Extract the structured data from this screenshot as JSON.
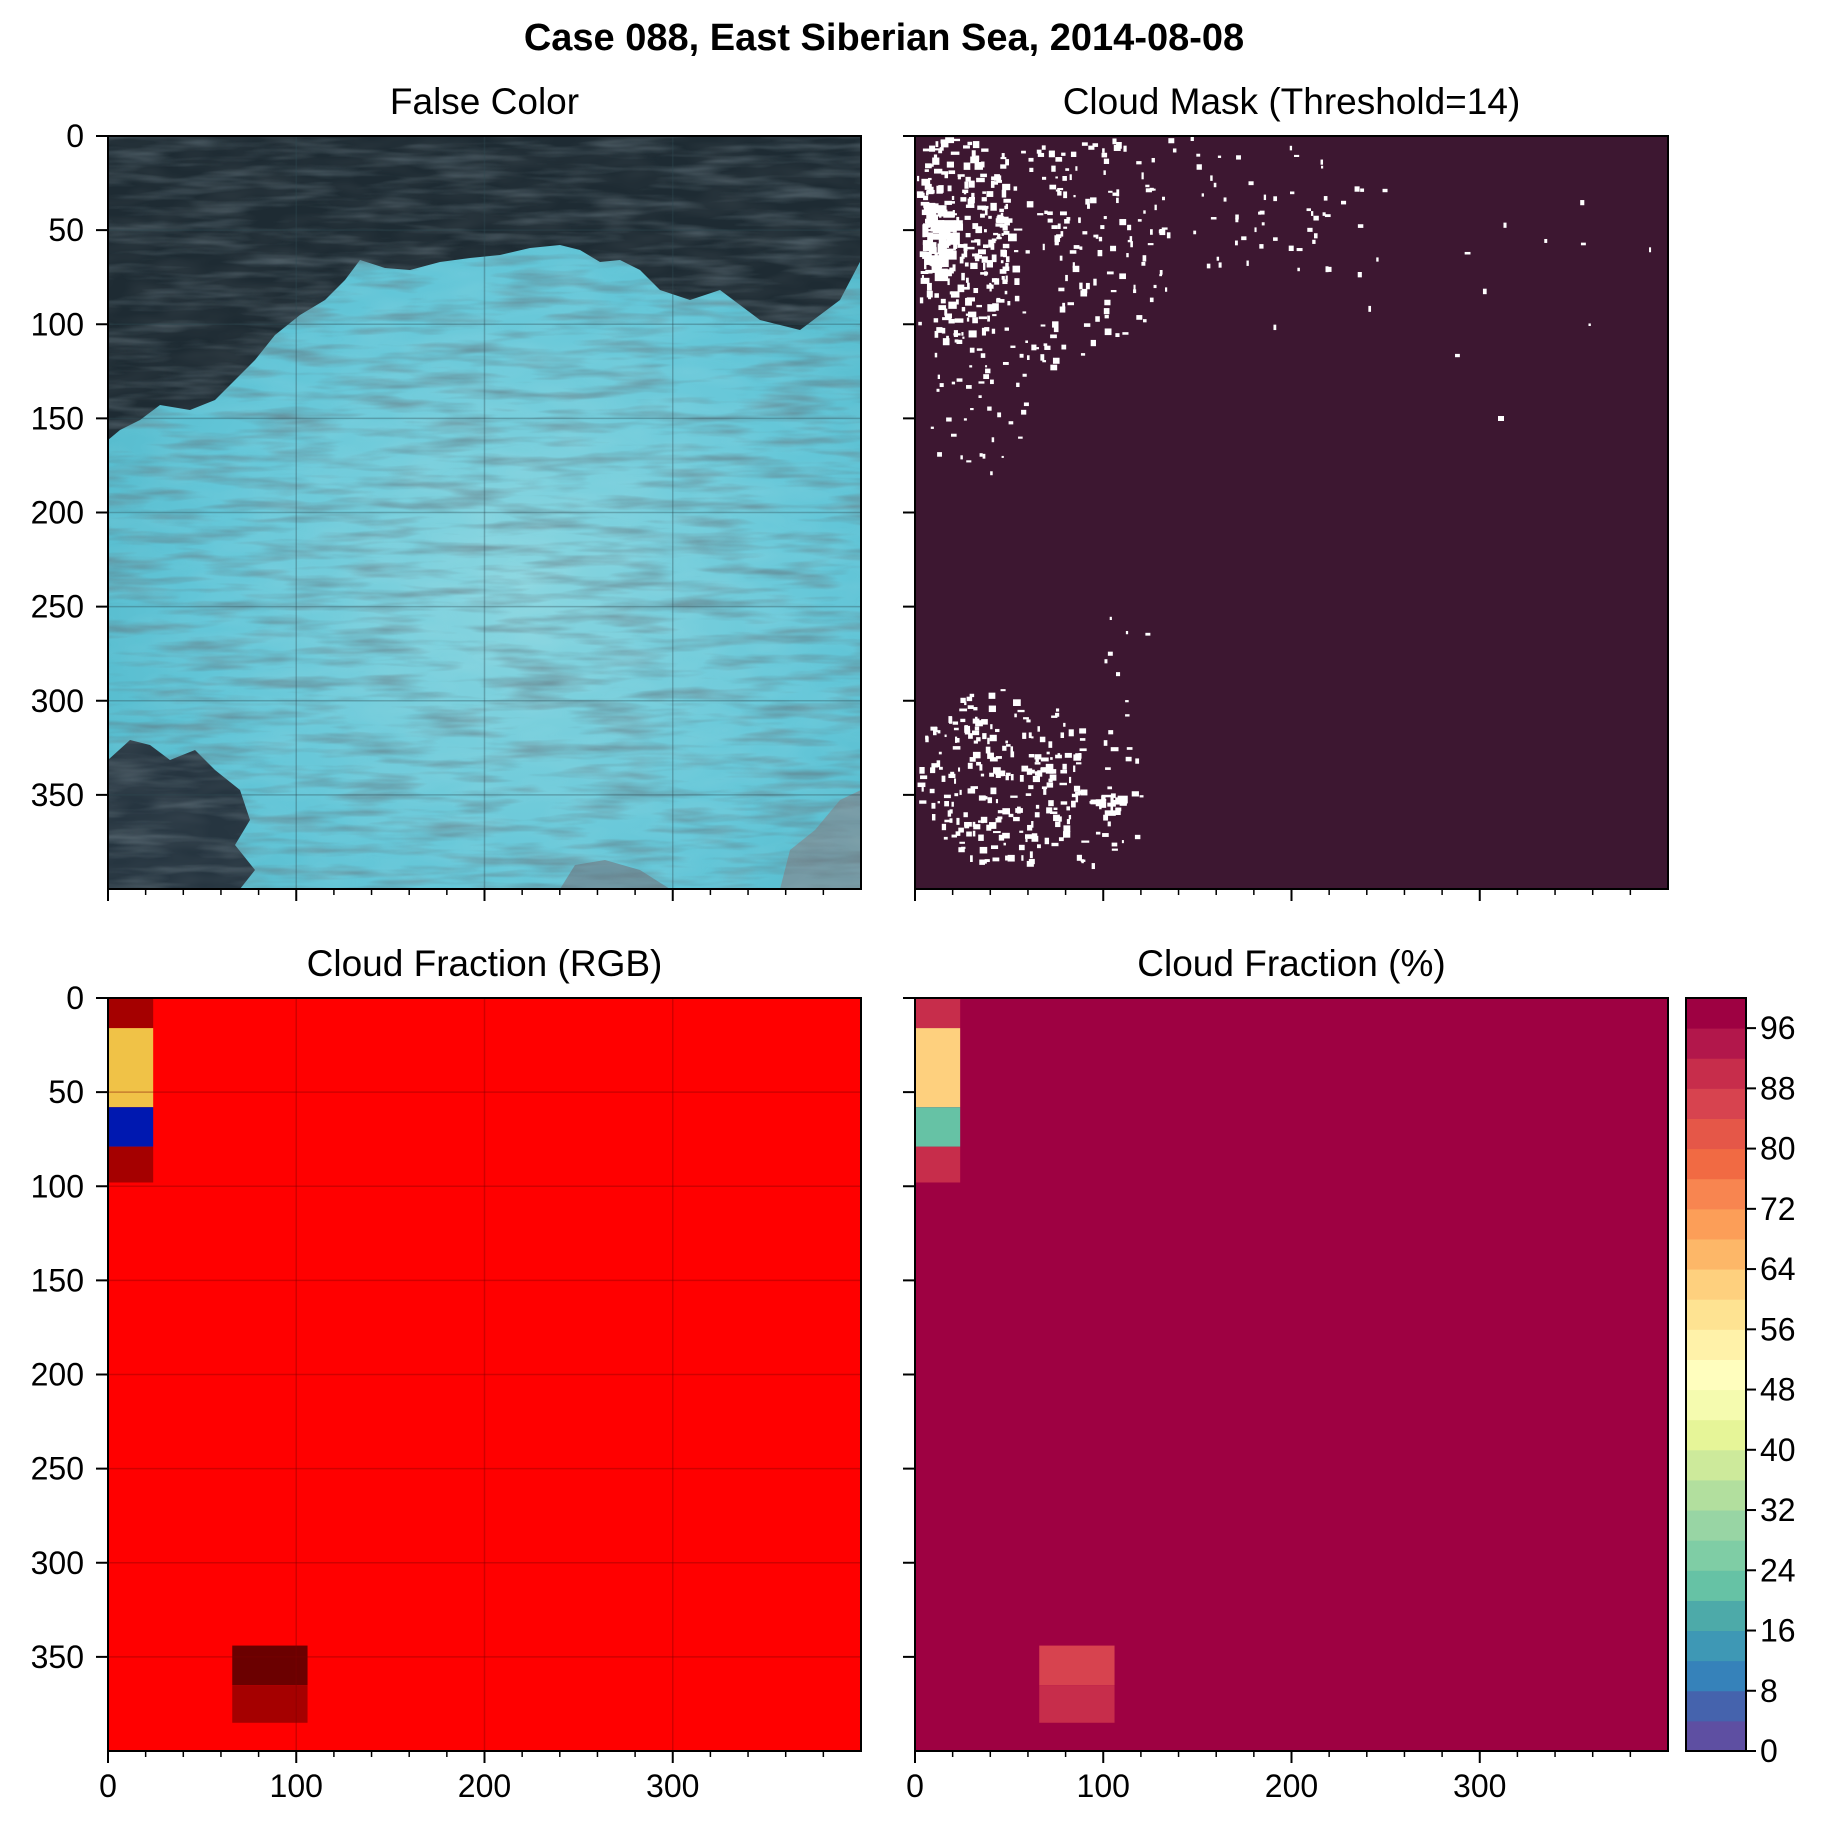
{
  "figure": {
    "title": "Case 088, East Siberian Sea, 2014-08-08"
  },
  "colors": {
    "ocean_dark": "#1e2b33",
    "ice_cyan": "#5fc4d6",
    "ice_light": "#8ad6e0",
    "mask_background": "#3d1731",
    "mask_cloud": "#ffffff",
    "rgb_red": "#ff0000",
    "rgb_darkred": "#a50000",
    "rgb_darkest": "#6b0000",
    "rgb_yellow": "#f0c247",
    "rgb_blue": "#0018b0",
    "frac_main": "#9e0142"
  },
  "chart_data": [
    {
      "type": "heatmap",
      "panel": "false-color",
      "title": "False Color",
      "xlim": [
        0,
        400
      ],
      "ylim": [
        400,
        0
      ],
      "xticks": [
        0,
        100,
        200,
        300
      ],
      "yticks": [
        0,
        50,
        100,
        150,
        200,
        250,
        300,
        350
      ],
      "show_xticklabels": false,
      "show_yticklabels": true,
      "grid": true,
      "regions": [
        {
          "label": "open water (dark)",
          "area": "upper-left and top band, patches lower-left"
        },
        {
          "label": "sea ice (cyan)",
          "area": "center, lower and right"
        }
      ]
    },
    {
      "type": "heatmap",
      "panel": "cloud-mask",
      "title": "Cloud Mask (Threshold=14)",
      "xlim": [
        0,
        400
      ],
      "ylim": [
        400,
        0
      ],
      "xticks": [
        0,
        100,
        200,
        300
      ],
      "yticks": [
        0,
        50,
        100,
        150,
        200,
        250,
        300,
        350
      ],
      "show_xticklabels": false,
      "show_yticklabels": false,
      "grid": false
    },
    {
      "type": "heatmap",
      "panel": "cloud-fraction-rgb",
      "title": "Cloud Fraction (RGB)",
      "xlim": [
        0,
        400
      ],
      "ylim": [
        400,
        0
      ],
      "xticks": [
        0,
        100,
        200,
        300
      ],
      "yticks": [
        0,
        50,
        100,
        150,
        200,
        250,
        300,
        350
      ],
      "show_xticklabels": true,
      "show_yticklabels": true,
      "grid": true,
      "background_color": "#ff0000",
      "cells": [
        {
          "x": [
            0,
            24
          ],
          "y": [
            0,
            16
          ],
          "color": "#a50000"
        },
        {
          "x": [
            0,
            24
          ],
          "y": [
            16,
            58
          ],
          "color": "#f0c247"
        },
        {
          "x": [
            0,
            24
          ],
          "y": [
            58,
            79
          ],
          "color": "#0018b0"
        },
        {
          "x": [
            0,
            24
          ],
          "y": [
            79,
            98
          ],
          "color": "#a50000"
        },
        {
          "x": [
            66,
            106
          ],
          "y": [
            344,
            365
          ],
          "color": "#6b0000"
        },
        {
          "x": [
            66,
            106
          ],
          "y": [
            365,
            385
          ],
          "color": "#a50000"
        }
      ]
    },
    {
      "type": "heatmap",
      "panel": "cloud-fraction-percent",
      "title": "Cloud Fraction (%)",
      "xlim": [
        0,
        400
      ],
      "ylim": [
        400,
        0
      ],
      "xticks": [
        0,
        100,
        200,
        300
      ],
      "yticks": [
        0,
        50,
        100,
        150,
        200,
        250,
        300,
        350
      ],
      "show_xticklabels": true,
      "show_yticklabels": false,
      "grid": false,
      "background_value": 100,
      "cells": [
        {
          "x": [
            0,
            24
          ],
          "y": [
            0,
            16
          ],
          "value": 89
        },
        {
          "x": [
            0,
            24
          ],
          "y": [
            16,
            58
          ],
          "value": 62
        },
        {
          "x": [
            0,
            24
          ],
          "y": [
            58,
            79
          ],
          "value": 23
        },
        {
          "x": [
            0,
            24
          ],
          "y": [
            79,
            98
          ],
          "value": 89
        },
        {
          "x": [
            66,
            106
          ],
          "y": [
            344,
            365
          ],
          "value": 85
        },
        {
          "x": [
            66,
            106
          ],
          "y": [
            365,
            385
          ],
          "value": 89
        }
      ],
      "colorbar": {
        "range": [
          0,
          100
        ],
        "step": 4,
        "tick_labels": [
          "0",
          "8",
          "16",
          "24",
          "32",
          "40",
          "48",
          "56",
          "64",
          "72",
          "80",
          "88",
          "96"
        ],
        "colors": [
          "#5e4fa2",
          "#4563ad",
          "#3682ba",
          "#3e98b5",
          "#4daaa9",
          "#66c2a5",
          "#7fcda5",
          "#98d5a4",
          "#b2df9e",
          "#cdea9b",
          "#e6f598",
          "#f5fbaf",
          "#fffebe",
          "#fff2a9",
          "#fee392",
          "#fed07e",
          "#fdb768",
          "#fc9e58",
          "#f88550",
          "#f16a43",
          "#e55748",
          "#d7434f",
          "#c72d4b",
          "#b2174b",
          "#9e0142"
        ]
      }
    }
  ]
}
